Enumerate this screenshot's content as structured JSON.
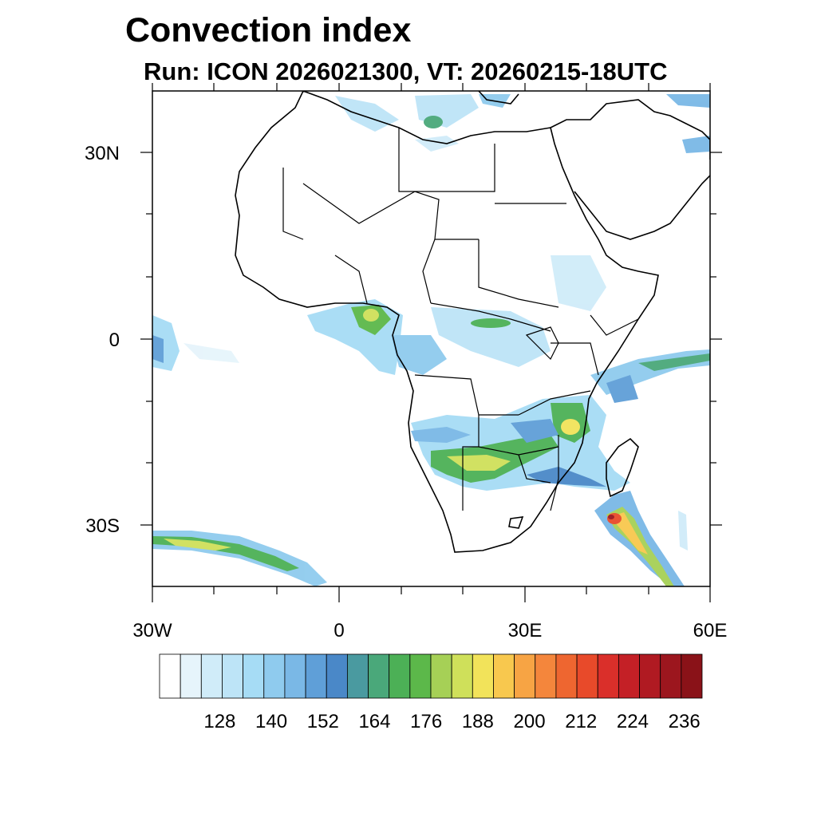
{
  "title": "Convection index",
  "subtitle": "Run: ICON 2026021300,  VT: 20260215-18UTC",
  "map": {
    "lon_range": [
      -30,
      60
    ],
    "lat_range": [
      -40,
      40
    ],
    "lat_labels": [
      "30N",
      "0",
      "30S"
    ],
    "lon_labels": [
      "30W",
      "0",
      "30E",
      "60E"
    ]
  },
  "colorbar": {
    "labels": [
      "128",
      "140",
      "152",
      "164",
      "176",
      "188",
      "200",
      "212",
      "224",
      "236"
    ],
    "colors": [
      "#ffffff",
      "#e6f4fb",
      "#d0ecf9",
      "#bde4f7",
      "#a6dcf5",
      "#8fcbee",
      "#7ab8e6",
      "#5f9fd8",
      "#4a88c8",
      "#4a9aa0",
      "#4aa87a",
      "#4cb056",
      "#5cb84a",
      "#a6d056",
      "#cfe05a",
      "#f2e35a",
      "#f8c84e",
      "#f7a444",
      "#f4863c",
      "#ee6630",
      "#e84a2a",
      "#da2f2a",
      "#c42026",
      "#b01a22",
      "#9c161e",
      "#8a1218"
    ]
  }
}
